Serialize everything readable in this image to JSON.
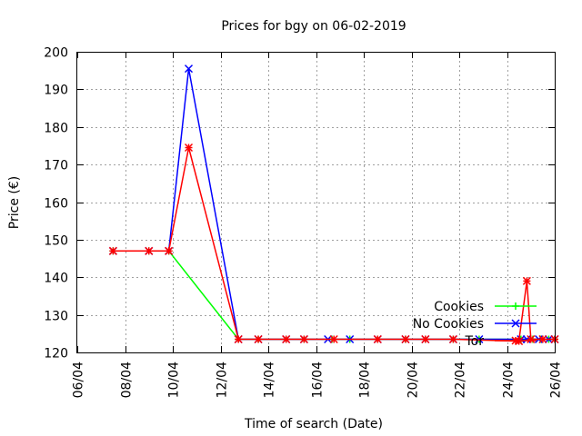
{
  "chart_data": {
    "type": "line",
    "title": "Prices for bgy on 06-02-2019",
    "xlabel": "Time of search (Date)",
    "ylabel": "Price (€)",
    "x_ticks": [
      "06/04",
      "08/04",
      "10/04",
      "12/04",
      "14/04",
      "16/04",
      "18/04",
      "20/04",
      "22/04",
      "24/04",
      "26/04"
    ],
    "xlim": [
      "2019-04-06",
      "2019-04-26"
    ],
    "ylim": [
      120,
      200
    ],
    "y_ticks": [
      120,
      130,
      140,
      150,
      160,
      170,
      180,
      190,
      200
    ],
    "grid": true,
    "legend_position": "bottom-right",
    "series": [
      {
        "name": "Cookies",
        "color": "#00ff00",
        "marker": "plus",
        "x": [
          "2019-04-07 12:00",
          "2019-04-09 00:00",
          "2019-04-09 20:00",
          "2019-04-12 18:00",
          "2019-04-13 14:00",
          "2019-04-14 18:00",
          "2019-04-15 12:00",
          "2019-04-16 16:00",
          "2019-04-17 10:00",
          "2019-04-18 14:00",
          "2019-04-19 18:00",
          "2019-04-20 14:00",
          "2019-04-21 18:00",
          "2019-04-22 20:00",
          "2019-04-24 14:00",
          "2019-04-25 02:00",
          "2019-04-25 10:00",
          "2019-04-25 18:00",
          "2019-04-26 00:00"
        ],
        "y": [
          147,
          147,
          147,
          123.5,
          123.5,
          123.5,
          123.5,
          123.5,
          123.5,
          123.5,
          123.5,
          123.5,
          123.5,
          123.5,
          123.5,
          123.5,
          123.5,
          123.5,
          123.5
        ]
      },
      {
        "name": "No Cookies",
        "color": "#0000ff",
        "marker": "cross",
        "x": [
          "2019-04-07 12:00",
          "2019-04-09 00:00",
          "2019-04-09 20:00",
          "2019-04-10 16:00",
          "2019-04-12 18:00",
          "2019-04-13 14:00",
          "2019-04-14 18:00",
          "2019-04-15 12:00",
          "2019-04-16 12:00",
          "2019-04-17 10:00",
          "2019-04-18 14:00",
          "2019-04-19 18:00",
          "2019-04-20 14:00",
          "2019-04-21 18:00",
          "2019-04-22 20:00",
          "2019-04-24 14:00",
          "2019-04-24 20:00",
          "2019-04-25 08:00",
          "2019-04-25 18:00",
          "2019-04-26 00:00"
        ],
        "y": [
          147,
          147,
          147,
          195.5,
          123.5,
          123.5,
          123.5,
          123.5,
          123.5,
          123.5,
          123.5,
          123.5,
          123.5,
          123.5,
          123.5,
          123.5,
          123.5,
          123.5,
          123.5,
          123.5
        ]
      },
      {
        "name": "Tor",
        "color": "#ff0000",
        "marker": "star",
        "x": [
          "2019-04-07 12:00",
          "2019-04-09 00:00",
          "2019-04-09 20:00",
          "2019-04-10 16:00",
          "2019-04-12 18:00",
          "2019-04-13 14:00",
          "2019-04-14 18:00",
          "2019-04-15 12:00",
          "2019-04-16 18:00",
          "2019-04-18 14:00",
          "2019-04-19 18:00",
          "2019-04-20 14:00",
          "2019-04-21 18:00",
          "2019-04-24 12:00",
          "2019-04-24 20:00",
          "2019-04-25 00:00",
          "2019-04-25 12:00",
          "2019-04-26 00:00"
        ],
        "y": [
          147,
          147,
          147,
          174.5,
          123.5,
          123.5,
          123.5,
          123.5,
          123.5,
          123.5,
          123.5,
          123.5,
          123.5,
          123,
          139,
          123.5,
          123.5,
          123.5
        ]
      }
    ]
  }
}
